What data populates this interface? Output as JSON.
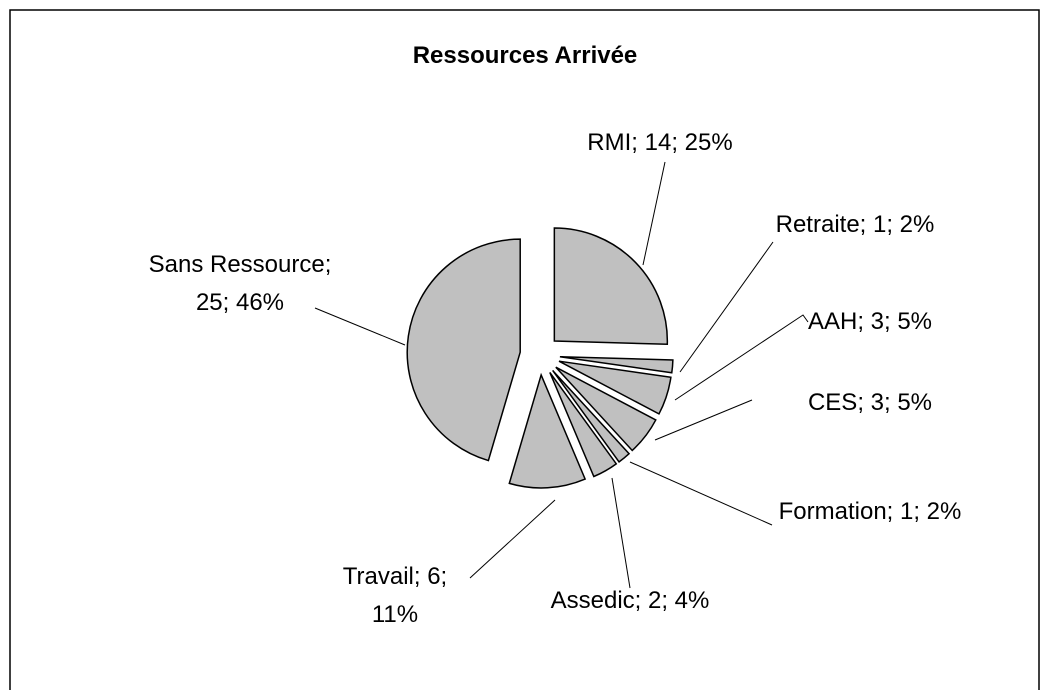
{
  "chart_data": {
    "type": "pie",
    "title": "Ressources Arrivée",
    "categories": [
      "RMI",
      "Retraite",
      "AAH",
      "CES",
      "Formation",
      "Assedic",
      "Travail",
      "Sans Ressource"
    ],
    "values": [
      14,
      1,
      3,
      3,
      1,
      2,
      6,
      25
    ],
    "value_labels": [
      "RMI; 14; 25%",
      "Retraite; 1; 2%",
      "AAH; 3; 5%",
      "CES; 3; 5%",
      "Formation; 1; 2%",
      "Assedic; 2; 4%",
      "Travail; 6; 11%",
      "Sans Ressource; 25; 46%"
    ],
    "color": "#c0c0c0",
    "exploded": true
  }
}
